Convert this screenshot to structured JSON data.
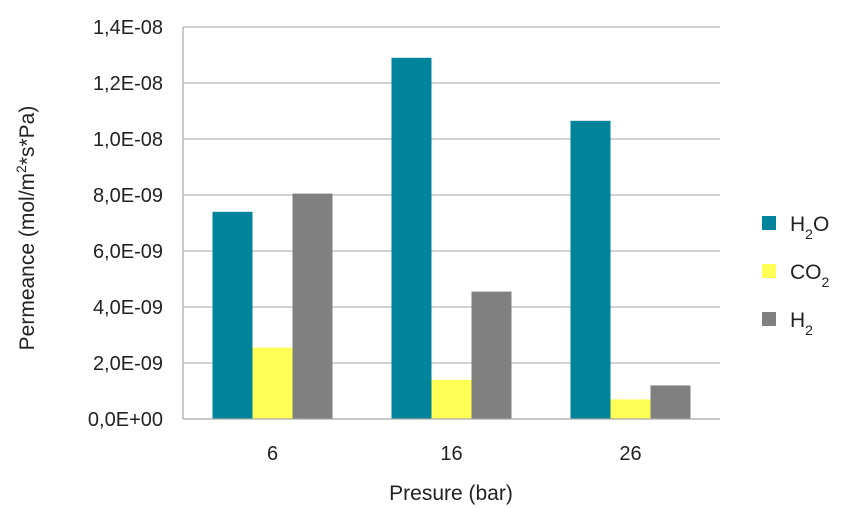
{
  "chart_data": {
    "type": "bar",
    "categories": [
      "6",
      "16",
      "26"
    ],
    "series": [
      {
        "name_parts": [
          "H",
          "2",
          "O"
        ],
        "color": "#00849b",
        "values": [
          7.4e-09,
          1.29e-08,
          1.065e-08
        ]
      },
      {
        "name_parts": [
          "CO",
          "2",
          ""
        ],
        "color": "#ffff55",
        "values": [
          2.55e-09,
          1.4e-09,
          7e-10
        ]
      },
      {
        "name_parts": [
          "H",
          "2",
          ""
        ],
        "color": "#808080",
        "values": [
          8.05e-09,
          4.55e-09,
          1.2e-09
        ]
      }
    ],
    "xlabel": "Presure (bar)",
    "ylabel_parts": [
      "Permeance (mol/m",
      "2",
      "*s*Pa)"
    ],
    "ylim": [
      0,
      1.4e-08
    ],
    "ytick_labels": [
      "0,0E+00",
      "2,0E-09",
      "4,0E-09",
      "6,0E-09",
      "8,0E-09",
      "1,0E-08",
      "1,2E-08",
      "1,4E-08"
    ],
    "grid": true,
    "legend_position": "right"
  }
}
